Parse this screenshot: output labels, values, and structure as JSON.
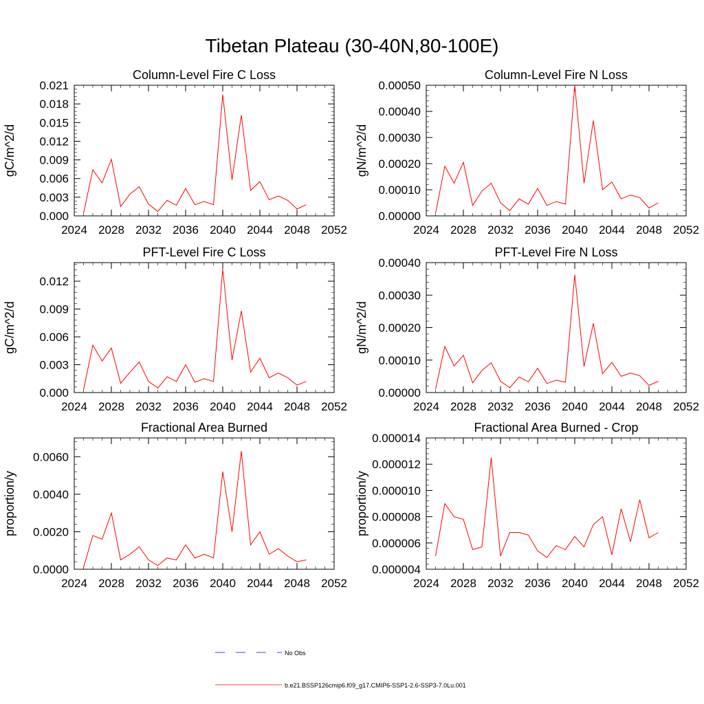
{
  "figure": {
    "title": "Tibetan Plateau (30-40N,80-100E)"
  },
  "legend": {
    "obs_label": "No Obs",
    "model_label": "b.e21.BSSP126cmip6.f09_g17.CMIP6-SSP1-2.6-SSP3-7.0Lu.001",
    "obs_color": "#0000ff",
    "model_color": "#ff0000"
  },
  "chart_data": [
    {
      "type": "line",
      "title": "Column-Level Fire C Loss",
      "ylabel": "gC/m^2/d",
      "xlim": [
        2024,
        2052
      ],
      "ylim": [
        0,
        0.021
      ],
      "xticks": [
        "2024",
        "2028",
        "2032",
        "2036",
        "2040",
        "2044",
        "2048",
        "2052"
      ],
      "yticks": [
        "0.000",
        "0.003",
        "0.006",
        "0.009",
        "0.012",
        "0.015",
        "0.018",
        "0.021"
      ],
      "x": [
        2025,
        2026,
        2027,
        2028,
        2029,
        2030,
        2031,
        2032,
        2033,
        2034,
        2035,
        2036,
        2037,
        2038,
        2039,
        2040,
        2041,
        2042,
        2043,
        2044,
        2045,
        2046,
        2047,
        2048,
        2049
      ],
      "series": [
        {
          "color": "#ff0000",
          "values": [
            0.0004,
            0.0074,
            0.0053,
            0.0091,
            0.0015,
            0.0035,
            0.0047,
            0.0019,
            0.0007,
            0.0025,
            0.0017,
            0.0044,
            0.0018,
            0.0023,
            0.0018,
            0.0195,
            0.0058,
            0.0162,
            0.0041,
            0.0055,
            0.0026,
            0.0032,
            0.0025,
            0.0011,
            0.0018
          ]
        }
      ]
    },
    {
      "type": "line",
      "title": "Column-Level Fire N Loss",
      "ylabel": "gN/m^2/d",
      "xlim": [
        2024,
        2052
      ],
      "ylim": [
        0,
        0.0005
      ],
      "xticks": [
        "2024",
        "2028",
        "2032",
        "2036",
        "2040",
        "2044",
        "2048",
        "2052"
      ],
      "yticks": [
        "0.00000",
        "0.00010",
        "0.00020",
        "0.00030",
        "0.00040",
        "0.00050"
      ],
      "x": [
        2025,
        2026,
        2027,
        2028,
        2029,
        2030,
        2031,
        2032,
        2033,
        2034,
        2035,
        2036,
        2037,
        2038,
        2039,
        2040,
        2041,
        2042,
        2043,
        2044,
        2045,
        2046,
        2047,
        2048,
        2049
      ],
      "series": [
        {
          "color": "#ff0000",
          "values": [
            1e-05,
            0.00019,
            0.000125,
            0.000205,
            4e-05,
            9.5e-05,
            0.000125,
            5e-05,
            2e-05,
            6.5e-05,
            4.5e-05,
            0.000105,
            4e-05,
            5.5e-05,
            4.5e-05,
            0.0005,
            0.000125,
            0.000365,
            0.0001,
            0.00013,
            6.5e-05,
            8e-05,
            7e-05,
            3e-05,
            5e-05
          ]
        }
      ]
    },
    {
      "type": "line",
      "title": "PFT-Level Fire C Loss",
      "ylabel": "gC/m^2/d",
      "xlim": [
        2024,
        2052
      ],
      "ylim": [
        0,
        0.014
      ],
      "xticks": [
        "2024",
        "2028",
        "2032",
        "2036",
        "2040",
        "2044",
        "2048",
        "2052"
      ],
      "yticks": [
        "0.000",
        "0.003",
        "0.006",
        "0.009",
        "0.012"
      ],
      "x": [
        2025,
        2026,
        2027,
        2028,
        2029,
        2030,
        2031,
        2032,
        2033,
        2034,
        2035,
        2036,
        2037,
        2038,
        2039,
        2040,
        2041,
        2042,
        2043,
        2044,
        2045,
        2046,
        2047,
        2048,
        2049
      ],
      "series": [
        {
          "color": "#ff0000",
          "values": [
            0.0003,
            0.0051,
            0.0034,
            0.0048,
            0.001,
            0.0022,
            0.0033,
            0.0012,
            0.0005,
            0.0017,
            0.0012,
            0.003,
            0.0011,
            0.0015,
            0.0012,
            0.0133,
            0.0035,
            0.0088,
            0.0022,
            0.0037,
            0.0016,
            0.0021,
            0.0016,
            0.0008,
            0.0012
          ]
        }
      ]
    },
    {
      "type": "line",
      "title": "PFT-Level Fire N Loss",
      "ylabel": "gN/m^2/d",
      "xlim": [
        2024,
        2052
      ],
      "ylim": [
        0,
        0.0004
      ],
      "xticks": [
        "2024",
        "2028",
        "2032",
        "2036",
        "2040",
        "2044",
        "2048",
        "2052"
      ],
      "yticks": [
        "0.00000",
        "0.00010",
        "0.00020",
        "0.00030",
        "0.00040"
      ],
      "x": [
        2025,
        2026,
        2027,
        2028,
        2029,
        2030,
        2031,
        2032,
        2033,
        2034,
        2035,
        2036,
        2037,
        2038,
        2039,
        2040,
        2041,
        2042,
        2043,
        2044,
        2045,
        2046,
        2047,
        2048,
        2049
      ],
      "series": [
        {
          "color": "#ff0000",
          "values": [
            1e-05,
            0.000142,
            8.2e-05,
            0.000115,
            3e-05,
            6.8e-05,
            9.2e-05,
            3.5e-05,
            1.5e-05,
            4.8e-05,
            3.3e-05,
            7.5e-05,
            2.8e-05,
            3.8e-05,
            3.2e-05,
            0.000363,
            8e-05,
            0.000213,
            5.8e-05,
            9.3e-05,
            5e-05,
            6e-05,
            5.2e-05,
            2.2e-05,
            3.5e-05
          ]
        }
      ]
    },
    {
      "type": "line",
      "title": "Fractional Area Burned",
      "ylabel": "proportion/y",
      "xlim": [
        2024,
        2052
      ],
      "ylim": [
        0,
        0.007
      ],
      "xticks": [
        "2024",
        "2028",
        "2032",
        "2036",
        "2040",
        "2044",
        "2048",
        "2052"
      ],
      "yticks": [
        "0.0000",
        "0.0020",
        "0.0040",
        "0.0060"
      ],
      "x": [
        2025,
        2026,
        2027,
        2028,
        2029,
        2030,
        2031,
        2032,
        2033,
        2034,
        2035,
        2036,
        2037,
        2038,
        2039,
        2040,
        2041,
        2042,
        2043,
        2044,
        2045,
        2046,
        2047,
        2048,
        2049
      ],
      "series": [
        {
          "color": "#ff0000",
          "values": [
            0.0001,
            0.0018,
            0.0016,
            0.003,
            0.0005,
            0.0008,
            0.0012,
            0.0005,
            0.0002,
            0.0006,
            0.0005,
            0.0013,
            0.0006,
            0.0008,
            0.0006,
            0.0052,
            0.002,
            0.0063,
            0.0013,
            0.002,
            0.0008,
            0.0011,
            0.0007,
            0.0004,
            0.0005
          ]
        }
      ]
    },
    {
      "type": "line",
      "title": "Fractional Area Burned - Crop",
      "ylabel": "proportion/y",
      "xlim": [
        2024,
        2052
      ],
      "ylim": [
        4e-06,
        1.4e-05
      ],
      "xticks": [
        "2024",
        "2028",
        "2032",
        "2036",
        "2040",
        "2044",
        "2048",
        "2052"
      ],
      "yticks": [
        "0.000004",
        "0.000006",
        "0.000008",
        "0.000010",
        "0.000012",
        "0.000014"
      ],
      "x": [
        2025,
        2026,
        2027,
        2028,
        2029,
        2030,
        2031,
        2032,
        2033,
        2034,
        2035,
        2036,
        2037,
        2038,
        2039,
        2040,
        2041,
        2042,
        2043,
        2044,
        2045,
        2046,
        2047,
        2048,
        2049
      ],
      "series": [
        {
          "color": "#ff0000",
          "values": [
            5e-06,
            9e-06,
            8e-06,
            7.8e-06,
            5.5e-06,
            5.7e-06,
            1.25e-05,
            5e-06,
            6.8e-06,
            6.8e-06,
            6.6e-06,
            5.4e-06,
            4.9e-06,
            5.8e-06,
            5.5e-06,
            6.5e-06,
            5.7e-06,
            7.4e-06,
            8e-06,
            5.1e-06,
            8.6e-06,
            6.1e-06,
            9.3e-06,
            6.4e-06,
            6.8e-06
          ]
        }
      ]
    }
  ]
}
